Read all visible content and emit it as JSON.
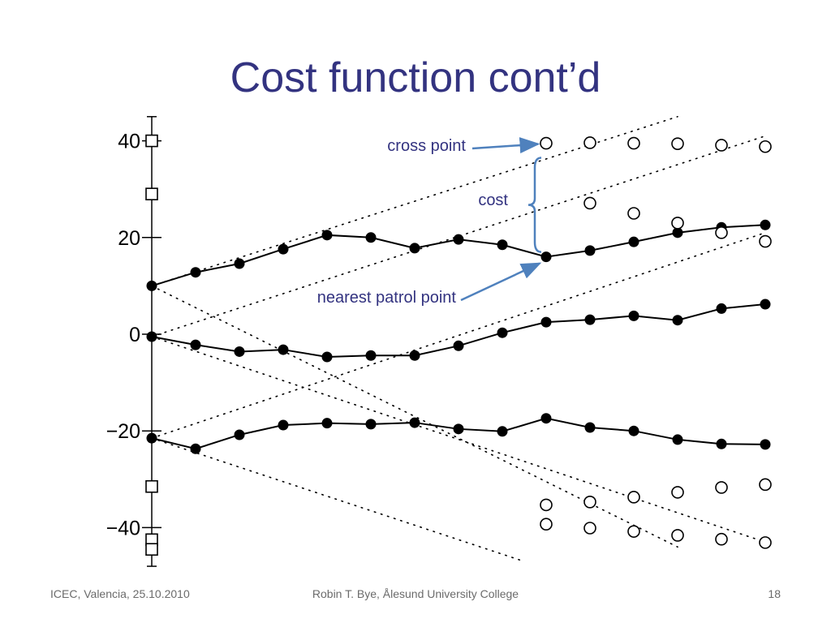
{
  "slide": {
    "title": "Cost function cont’d",
    "footer_left": "ICEC, Valencia, 25.10.2010",
    "footer_center": "Robin T. Bye, Ålesund University College",
    "page_number": "18"
  },
  "colors": {
    "title": "#333380",
    "annotation_text": "#333380",
    "arrow": "#4f81bd",
    "footer": "#6b6b6b",
    "series": "#000000"
  },
  "chart_data": {
    "type": "line",
    "title": "",
    "xlabel": "",
    "ylabel": "",
    "grid": false,
    "legend": "none",
    "ylim": [
      -48,
      45
    ],
    "xlim": [
      0,
      14
    ],
    "y_ticks": [
      40,
      20,
      0,
      -20,
      -40
    ],
    "y_tick_labels": [
      "40",
      "20",
      "0",
      "−20",
      "−40"
    ],
    "x": [
      0,
      1,
      2,
      3,
      4,
      5,
      6,
      7,
      8,
      9,
      10,
      11,
      12,
      13,
      14
    ],
    "series": [
      {
        "marker": "filled-circle",
        "style": "solid",
        "values": [
          10,
          12.8,
          14.6,
          17.6,
          20.5,
          20,
          17.8,
          19.6,
          18.5,
          16,
          17.3,
          19.1,
          21,
          22.1,
          22.6
        ]
      },
      {
        "marker": "filled-circle",
        "style": "solid",
        "values": [
          -0.5,
          -2.2,
          -3.6,
          -3.2,
          -4.7,
          -4.4,
          -4.4,
          -2.4,
          0.3,
          2.5,
          3.0,
          3.8,
          2.9,
          5.3,
          6.2
        ]
      },
      {
        "marker": "filled-circle",
        "style": "solid",
        "values": [
          -21.5,
          -23.7,
          -20.8,
          -18.8,
          -18.4,
          -18.6,
          -18.3,
          -19.6,
          -20.1,
          -17.4,
          -19.3,
          -20,
          -21.8,
          -22.7,
          -22.8
        ]
      }
    ],
    "boundary_lines": [
      {
        "style": "dotted",
        "x": [
          0,
          12
        ],
        "y": [
          10,
          45
        ]
      },
      {
        "style": "dotted",
        "x": [
          0,
          14
        ],
        "y": [
          -0.5,
          41
        ]
      },
      {
        "style": "dotted",
        "x": [
          0,
          12
        ],
        "y": [
          10,
          -44
        ]
      },
      {
        "style": "dotted",
        "x": [
          0,
          14
        ],
        "y": [
          -0.5,
          -43
        ]
      },
      {
        "style": "dotted",
        "x": [
          0,
          14
        ],
        "y": [
          -21.5,
          21
        ]
      },
      {
        "style": "dotted",
        "x": [
          0,
          8.5
        ],
        "y": [
          -21.5,
          -47
        ]
      }
    ],
    "cross_points": {
      "marker": "open-circle",
      "points": [
        [
          9,
          39.5
        ],
        [
          10,
          39.6
        ],
        [
          11,
          39.5
        ],
        [
          12,
          39.4
        ],
        [
          13,
          39.1
        ],
        [
          14,
          38.8
        ],
        [
          10,
          27.1
        ],
        [
          11,
          25
        ],
        [
          12,
          23
        ],
        [
          13,
          21
        ],
        [
          14,
          19.2
        ],
        [
          9,
          -35.3
        ],
        [
          10,
          -34.7
        ],
        [
          11,
          -33.7
        ],
        [
          12,
          -32.7
        ],
        [
          13,
          -31.7
        ],
        [
          14,
          -31.1
        ],
        [
          9,
          -39.3
        ],
        [
          10,
          -40.1
        ],
        [
          11,
          -40.8
        ],
        [
          12,
          -41.6
        ],
        [
          13,
          -42.4
        ],
        [
          14,
          -43.1
        ]
      ]
    },
    "axis_squares": {
      "marker": "open-square",
      "points": [
        [
          0,
          40
        ],
        [
          0,
          29
        ],
        [
          0,
          -31.5
        ],
        [
          0,
          -42.5
        ],
        [
          0,
          -44.5
        ]
      ]
    },
    "annotations": [
      {
        "text": "cross point",
        "points_to": [
          9,
          39.5
        ]
      },
      {
        "text": "cost",
        "brace_from": [
          9,
          36.5
        ],
        "brace_to": [
          9,
          17
        ]
      },
      {
        "text": "nearest patrol point",
        "points_to": [
          9,
          16
        ]
      }
    ]
  }
}
